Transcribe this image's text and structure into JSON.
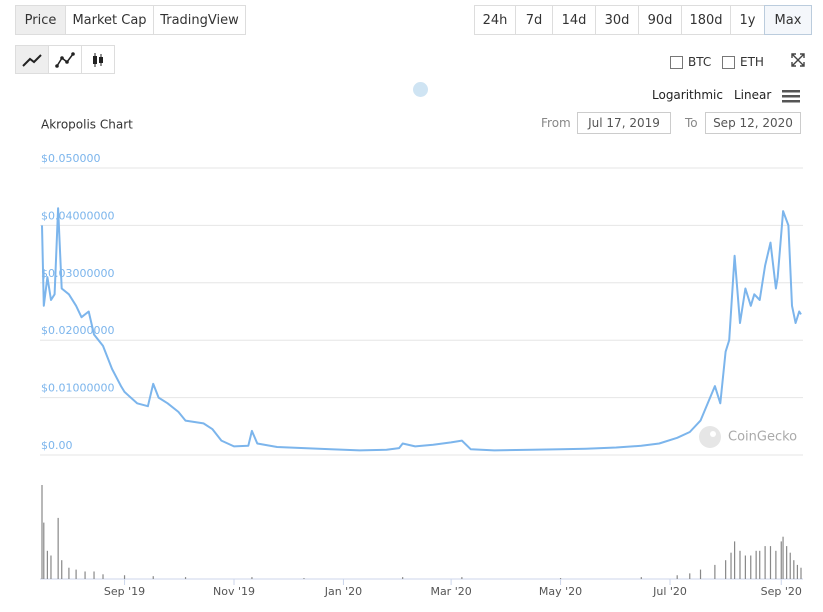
{
  "tabs": [
    "Price",
    "Market Cap",
    "TradingView"
  ],
  "ranges": [
    "24h",
    "7d",
    "14d",
    "30d",
    "90d",
    "180d",
    "1y",
    "Max"
  ],
  "compare": [
    "BTC",
    "ETH"
  ],
  "scale_options": [
    "Logarithmic",
    "Linear"
  ],
  "date_range": {
    "from_label": "From",
    "from": "Jul 17, 2019",
    "to_label": "To",
    "to": "Sep 12, 2020"
  },
  "watermark": "CoinGecko",
  "chart_data": {
    "type": "line",
    "title": "Akropolis Chart",
    "color": "#7cb5ec",
    "grid": true,
    "xlim": [
      "2019-07-17",
      "2020-09-12"
    ],
    "xticks": [
      {
        "value": "2019-09-01",
        "label": "Sep '19"
      },
      {
        "value": "2019-11-01",
        "label": "Nov '19"
      },
      {
        "value": "2020-01-01",
        "label": "Jan '20"
      },
      {
        "value": "2020-03-01",
        "label": "Mar '20"
      },
      {
        "value": "2020-05-01",
        "label": "May '20"
      },
      {
        "value": "2020-07-01",
        "label": "Jul '20"
      },
      {
        "value": "2020-09-01",
        "label": "Sep '20"
      }
    ],
    "ylim": [
      0,
      0.05
    ],
    "yticks": [
      {
        "value": 0,
        "label": "$0.00"
      },
      {
        "value": 0.01,
        "label": "$0.01000000"
      },
      {
        "value": 0.02,
        "label": "$0.02000000"
      },
      {
        "value": 0.03,
        "label": "$0.03000000"
      },
      {
        "value": 0.04,
        "label": "$0.04000000"
      },
      {
        "value": 0.05,
        "label": "$0.050000"
      }
    ],
    "x": [
      "2019-07-17",
      "2019-07-18",
      "2019-07-20",
      "2019-07-22",
      "2019-07-24",
      "2019-07-26",
      "2019-07-28",
      "2019-08-01",
      "2019-08-05",
      "2019-08-08",
      "2019-08-12",
      "2019-08-15",
      "2019-08-20",
      "2019-08-25",
      "2019-08-30",
      "2019-09-01",
      "2019-09-08",
      "2019-09-14",
      "2019-09-17",
      "2019-09-20",
      "2019-09-25",
      "2019-10-01",
      "2019-10-05",
      "2019-10-15",
      "2019-10-20",
      "2019-10-25",
      "2019-11-01",
      "2019-11-09",
      "2019-11-11",
      "2019-11-14",
      "2019-11-25",
      "2019-12-10",
      "2019-12-25",
      "2020-01-10",
      "2020-01-25",
      "2020-02-01",
      "2020-02-03",
      "2020-02-10",
      "2020-02-20",
      "2020-03-01",
      "2020-03-07",
      "2020-03-12",
      "2020-03-25",
      "2020-04-15",
      "2020-05-01",
      "2020-05-15",
      "2020-06-01",
      "2020-06-15",
      "2020-06-25",
      "2020-07-05",
      "2020-07-12",
      "2020-07-18",
      "2020-07-26",
      "2020-07-29",
      "2020-08-01",
      "2020-08-03",
      "2020-08-06",
      "2020-08-09",
      "2020-08-12",
      "2020-08-15",
      "2020-08-17",
      "2020-08-20",
      "2020-08-23",
      "2020-08-26",
      "2020-08-29",
      "2020-08-30",
      "2020-09-02",
      "2020-09-05",
      "2020-09-07",
      "2020-09-09",
      "2020-09-11",
      "2020-09-12"
    ],
    "values": [
      0.04,
      0.026,
      0.031,
      0.027,
      0.028,
      0.043,
      0.029,
      0.028,
      0.026,
      0.024,
      0.025,
      0.021,
      0.019,
      0.015,
      0.012,
      0.011,
      0.009,
      0.0085,
      0.0124,
      0.01,
      0.009,
      0.0075,
      0.006,
      0.0055,
      0.0045,
      0.0025,
      0.0015,
      0.0016,
      0.0042,
      0.002,
      0.0014,
      0.0012,
      0.001,
      0.0008,
      0.0009,
      0.0012,
      0.002,
      0.0015,
      0.0018,
      0.0022,
      0.0025,
      0.001,
      0.0008,
      0.0009,
      0.001,
      0.0011,
      0.0013,
      0.0016,
      0.002,
      0.003,
      0.004,
      0.006,
      0.012,
      0.009,
      0.018,
      0.02,
      0.0347,
      0.023,
      0.029,
      0.026,
      0.028,
      0.027,
      0.033,
      0.037,
      0.029,
      0.031,
      0.0425,
      0.04,
      0.026,
      0.023,
      0.025,
      0.0245
    ],
    "volume": {
      "color": "#888888",
      "ylim": [
        0,
        100
      ],
      "x": [
        "2019-07-17",
        "2019-07-18",
        "2019-07-20",
        "2019-07-22",
        "2019-07-26",
        "2019-07-28",
        "2019-08-01",
        "2019-08-05",
        "2019-08-10",
        "2019-08-15",
        "2019-08-20",
        "2019-09-01",
        "2019-09-17",
        "2019-10-05",
        "2019-11-11",
        "2019-12-10",
        "2020-02-03",
        "2020-03-07",
        "2020-05-01",
        "2020-06-15",
        "2020-07-05",
        "2020-07-12",
        "2020-07-18",
        "2020-07-26",
        "2020-08-01",
        "2020-08-04",
        "2020-08-06",
        "2020-08-09",
        "2020-08-12",
        "2020-08-15",
        "2020-08-18",
        "2020-08-20",
        "2020-08-23",
        "2020-08-26",
        "2020-08-29",
        "2020-09-01",
        "2020-09-02",
        "2020-09-04",
        "2020-09-06",
        "2020-09-08",
        "2020-09-10",
        "2020-09-12"
      ],
      "values": [
        100,
        60,
        30,
        25,
        65,
        20,
        12,
        10,
        8,
        8,
        5,
        4,
        3,
        2,
        2,
        1,
        2,
        2,
        1,
        2,
        4,
        6,
        10,
        15,
        20,
        28,
        40,
        30,
        25,
        25,
        30,
        30,
        35,
        35,
        30,
        40,
        45,
        35,
        28,
        20,
        15,
        12
      ]
    }
  }
}
